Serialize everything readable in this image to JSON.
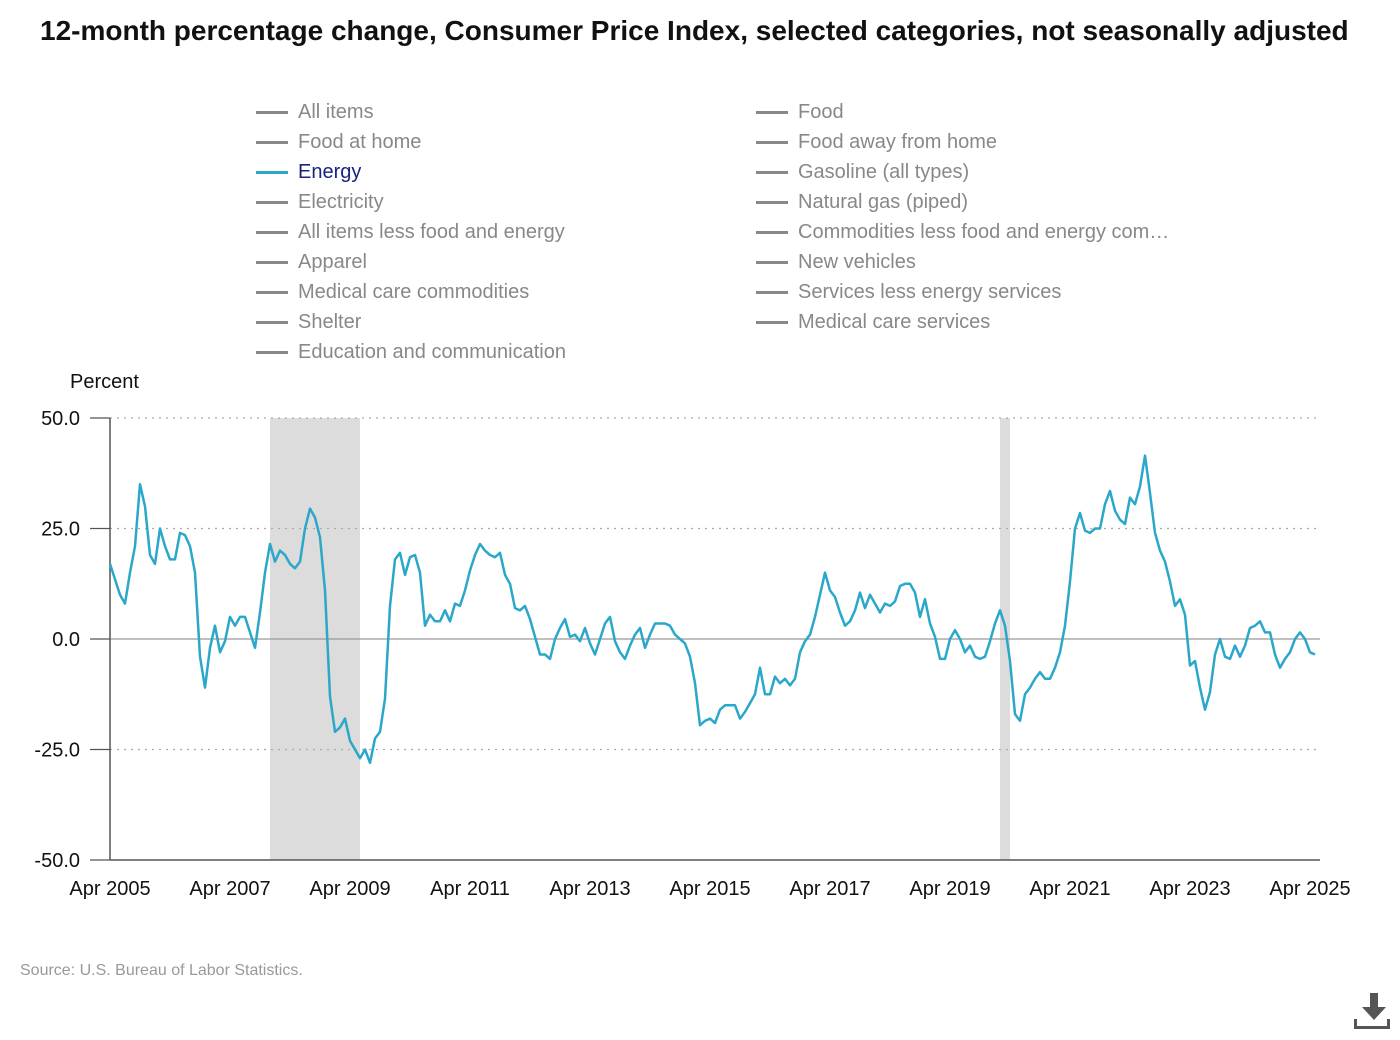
{
  "title": "12-month percentage change, Consumer Price Index, selected categories, not seasonally adjusted",
  "legend": [
    {
      "label": "All items",
      "active": false
    },
    {
      "label": "Food",
      "active": false
    },
    {
      "label": "Food at home",
      "active": false
    },
    {
      "label": "Food away from home",
      "active": false
    },
    {
      "label": "Energy",
      "active": true
    },
    {
      "label": "Gasoline (all types)",
      "active": false
    },
    {
      "label": "Electricity",
      "active": false
    },
    {
      "label": "Natural gas (piped)",
      "active": false
    },
    {
      "label": "All items less food and energy",
      "active": false
    },
    {
      "label": "Commodities less food and energy com…",
      "active": false
    },
    {
      "label": "Apparel",
      "active": false
    },
    {
      "label": "New vehicles",
      "active": false
    },
    {
      "label": "Medical care commodities",
      "active": false
    },
    {
      "label": "Services less energy services",
      "active": false
    },
    {
      "label": "Shelter",
      "active": false
    },
    {
      "label": "Medical care services",
      "active": false
    },
    {
      "label": "Education and communication",
      "active": false
    }
  ],
  "source": "Source: U.S. Bureau of Labor Statistics.",
  "colors": {
    "energy_line": "#2aa7c9",
    "recession_band": "#dcdcdc",
    "active_legend_text": "#1a237e",
    "inactive_legend": "#888888"
  },
  "icons": {
    "download": "download-icon"
  },
  "chart_data": {
    "type": "line",
    "ylabel": "Percent",
    "ylim": [
      -50,
      50
    ],
    "yticks": [
      50,
      25,
      0,
      -25,
      -50
    ],
    "ytick_labels": [
      "50.0",
      "25.0",
      "0.0",
      "-25.0",
      "-50.0"
    ],
    "xlim": [
      "2005-04",
      "2025-06"
    ],
    "xtick_labels": [
      "Apr 2005",
      "Apr 2007",
      "Apr 2009",
      "Apr 2011",
      "Apr 2013",
      "Apr 2015",
      "Apr 2017",
      "Apr 2019",
      "Apr 2021",
      "Apr 2023",
      "Apr 2025"
    ],
    "xtick_dates": [
      "2005-04",
      "2007-04",
      "2009-04",
      "2011-04",
      "2013-04",
      "2015-04",
      "2017-04",
      "2019-04",
      "2021-04",
      "2023-04",
      "2025-04"
    ],
    "grid": "horizontal dotted",
    "recessions": [
      {
        "start": "2007-12",
        "end": "2009-06"
      },
      {
        "start": "2020-02",
        "end": "2020-04"
      }
    ],
    "series": [
      {
        "name": "Energy",
        "points": [
          [
            "2005-04",
            17
          ],
          [
            "2005-06",
            10
          ],
          [
            "2005-07",
            8
          ],
          [
            "2005-08",
            15
          ],
          [
            "2005-09",
            21
          ],
          [
            "2005-10",
            35
          ],
          [
            "2005-11",
            30
          ],
          [
            "2005-12",
            19
          ],
          [
            "2006-01",
            17
          ],
          [
            "2006-02",
            25
          ],
          [
            "2006-03",
            21
          ],
          [
            "2006-04",
            18
          ],
          [
            "2006-05",
            18
          ],
          [
            "2006-06",
            24
          ],
          [
            "2006-07",
            23.5
          ],
          [
            "2006-08",
            21
          ],
          [
            "2006-09",
            15
          ],
          [
            "2006-10",
            -4
          ],
          [
            "2006-11",
            -11
          ],
          [
            "2006-12",
            -2
          ],
          [
            "2007-01",
            3
          ],
          [
            "2007-02",
            -3
          ],
          [
            "2007-03",
            -0.5
          ],
          [
            "2007-04",
            5
          ],
          [
            "2007-05",
            3
          ],
          [
            "2007-06",
            5
          ],
          [
            "2007-07",
            5
          ],
          [
            "2007-08",
            1.5
          ],
          [
            "2007-09",
            -2
          ],
          [
            "2007-10",
            6
          ],
          [
            "2007-11",
            15
          ],
          [
            "2007-12",
            21.5
          ],
          [
            "2008-01",
            17.5
          ],
          [
            "2008-02",
            20
          ],
          [
            "2008-03",
            19
          ],
          [
            "2008-04",
            17
          ],
          [
            "2008-05",
            16
          ],
          [
            "2008-06",
            17.5
          ],
          [
            "2008-07",
            25
          ],
          [
            "2008-08",
            29.5
          ],
          [
            "2008-09",
            27.5
          ],
          [
            "2008-10",
            23
          ],
          [
            "2008-11",
            11
          ],
          [
            "2008-12",
            -13
          ],
          [
            "2009-01",
            -21
          ],
          [
            "2009-02",
            -20
          ],
          [
            "2009-03",
            -18
          ],
          [
            "2009-04",
            -23
          ],
          [
            "2009-05",
            -25
          ],
          [
            "2009-06",
            -27
          ],
          [
            "2009-07",
            -25
          ],
          [
            "2009-08",
            -28
          ],
          [
            "2009-09",
            -22.5
          ],
          [
            "2009-10",
            -21
          ],
          [
            "2009-11",
            -13.5
          ],
          [
            "2009-12",
            7.5
          ],
          [
            "2010-01",
            18
          ],
          [
            "2010-02",
            19.5
          ],
          [
            "2010-03",
            14.5
          ],
          [
            "2010-04",
            18.5
          ],
          [
            "2010-05",
            19
          ],
          [
            "2010-06",
            15
          ],
          [
            "2010-07",
            3
          ],
          [
            "2010-08",
            5.5
          ],
          [
            "2010-09",
            4
          ],
          [
            "2010-10",
            4
          ],
          [
            "2010-11",
            6.5
          ],
          [
            "2010-12",
            4
          ],
          [
            "2011-01",
            8
          ],
          [
            "2011-02",
            7.5
          ],
          [
            "2011-03",
            11
          ],
          [
            "2011-04",
            15.5
          ],
          [
            "2011-05",
            19
          ],
          [
            "2011-06",
            21.5
          ],
          [
            "2011-07",
            20
          ],
          [
            "2011-08",
            19
          ],
          [
            "2011-09",
            18.5
          ],
          [
            "2011-10",
            19.5
          ],
          [
            "2011-11",
            14.5
          ],
          [
            "2011-12",
            12.5
          ],
          [
            "2012-01",
            7
          ],
          [
            "2012-02",
            6.5
          ],
          [
            "2012-03",
            7.5
          ],
          [
            "2012-04",
            4.5
          ],
          [
            "2012-05",
            0.5
          ],
          [
            "2012-06",
            -3.5
          ],
          [
            "2012-07",
            -3.5
          ],
          [
            "2012-08",
            -4.5
          ],
          [
            "2012-09",
            0
          ],
          [
            "2012-10",
            2.5
          ],
          [
            "2012-11",
            4.5
          ],
          [
            "2012-12",
            0.5
          ],
          [
            "2013-01",
            1
          ],
          [
            "2013-02",
            -0.5
          ],
          [
            "2013-03",
            2.5
          ],
          [
            "2013-04",
            -1
          ],
          [
            "2013-05",
            -3.5
          ],
          [
            "2013-06",
            0
          ],
          [
            "2013-07",
            3.5
          ],
          [
            "2013-08",
            5
          ],
          [
            "2013-09",
            -0.5
          ],
          [
            "2013-10",
            -3
          ],
          [
            "2013-11",
            -4.5
          ],
          [
            "2013-12",
            -1.5
          ],
          [
            "2014-01",
            1
          ],
          [
            "2014-02",
            2.5
          ],
          [
            "2014-03",
            -2
          ],
          [
            "2014-04",
            1
          ],
          [
            "2014-05",
            3.5
          ],
          [
            "2014-06",
            3.5
          ],
          [
            "2014-07",
            3.5
          ],
          [
            "2014-08",
            3
          ],
          [
            "2014-09",
            1
          ],
          [
            "2014-10",
            0
          ],
          [
            "2014-11",
            -1
          ],
          [
            "2014-12",
            -4
          ],
          [
            "2015-01",
            -10
          ],
          [
            "2015-02",
            -19.5
          ],
          [
            "2015-03",
            -18.5
          ],
          [
            "2015-04",
            -18
          ],
          [
            "2015-05",
            -19
          ],
          [
            "2015-06",
            -16
          ],
          [
            "2015-07",
            -15
          ],
          [
            "2015-08",
            -15
          ],
          [
            "2015-09",
            -15
          ],
          [
            "2015-10",
            -18
          ],
          [
            "2015-11",
            -16.5
          ],
          [
            "2015-12",
            -14.5
          ],
          [
            "2016-01",
            -12.5
          ],
          [
            "2016-02",
            -6.5
          ],
          [
            "2016-03",
            -12.5
          ],
          [
            "2016-04",
            -12.5
          ],
          [
            "2016-05",
            -8.5
          ],
          [
            "2016-06",
            -10
          ],
          [
            "2016-07",
            -9
          ],
          [
            "2016-08",
            -10.5
          ],
          [
            "2016-09",
            -9
          ],
          [
            "2016-10",
            -3
          ],
          [
            "2016-11",
            -0.5
          ],
          [
            "2016-12",
            1
          ],
          [
            "2017-01",
            5
          ],
          [
            "2017-02",
            10
          ],
          [
            "2017-03",
            15
          ],
          [
            "2017-04",
            11
          ],
          [
            "2017-05",
            9.5
          ],
          [
            "2017-06",
            6
          ],
          [
            "2017-07",
            3
          ],
          [
            "2017-08",
            4
          ],
          [
            "2017-09",
            6.5
          ],
          [
            "2017-10",
            10.5
          ],
          [
            "2017-11",
            7
          ],
          [
            "2017-12",
            10
          ],
          [
            "2018-01",
            8
          ],
          [
            "2018-02",
            6
          ],
          [
            "2018-03",
            8
          ],
          [
            "2018-04",
            7.5
          ],
          [
            "2018-05",
            8.5
          ],
          [
            "2018-06",
            12
          ],
          [
            "2018-07",
            12.5
          ],
          [
            "2018-08",
            12.5
          ],
          [
            "2018-09",
            10.5
          ],
          [
            "2018-10",
            5
          ],
          [
            "2018-11",
            9
          ],
          [
            "2018-12",
            3.5
          ],
          [
            "2019-01",
            0.5
          ],
          [
            "2019-02",
            -4.5
          ],
          [
            "2019-03",
            -4.5
          ],
          [
            "2019-04",
            0
          ],
          [
            "2019-05",
            2
          ],
          [
            "2019-06",
            0
          ],
          [
            "2019-07",
            -3
          ],
          [
            "2019-08",
            -1.5
          ],
          [
            "2019-09",
            -4
          ],
          [
            "2019-10",
            -4.5
          ],
          [
            "2019-11",
            -4
          ],
          [
            "2019-12",
            -0.5
          ],
          [
            "2020-01",
            3.5
          ],
          [
            "2020-02",
            6.5
          ],
          [
            "2020-03",
            3
          ],
          [
            "2020-04",
            -5
          ],
          [
            "2020-05",
            -17
          ],
          [
            "2020-06",
            -18.5
          ],
          [
            "2020-07",
            -12.5
          ],
          [
            "2020-08",
            -11
          ],
          [
            "2020-09",
            -9
          ],
          [
            "2020-10",
            -7.5
          ],
          [
            "2020-11",
            -9
          ],
          [
            "2020-12",
            -9
          ],
          [
            "2021-01",
            -6.5
          ],
          [
            "2021-02",
            -3
          ],
          [
            "2021-03",
            3
          ],
          [
            "2021-04",
            13
          ],
          [
            "2021-05",
            25
          ],
          [
            "2021-06",
            28.5
          ],
          [
            "2021-07",
            24.5
          ],
          [
            "2021-08",
            24
          ],
          [
            "2021-09",
            25
          ],
          [
            "2021-10",
            25
          ],
          [
            "2021-11",
            30.5
          ],
          [
            "2021-12",
            33.5
          ],
          [
            "2022-01",
            29
          ],
          [
            "2022-02",
            27
          ],
          [
            "2022-03",
            26
          ],
          [
            "2022-04",
            32
          ],
          [
            "2022-05",
            30.5
          ],
          [
            "2022-06",
            34.5
          ],
          [
            "2022-07",
            41.5
          ],
          [
            "2022-08",
            33
          ],
          [
            "2022-09",
            24
          ],
          [
            "2022-10",
            20
          ],
          [
            "2022-11",
            17.5
          ],
          [
            "2022-12",
            13
          ],
          [
            "2023-01",
            7.5
          ],
          [
            "2023-02",
            9
          ],
          [
            "2023-03",
            5.5
          ],
          [
            "2023-04",
            -6
          ],
          [
            "2023-05",
            -5
          ],
          [
            "2023-06",
            -11
          ],
          [
            "2023-07",
            -16
          ],
          [
            "2023-08",
            -12
          ],
          [
            "2023-09",
            -3.5
          ],
          [
            "2023-10",
            0
          ],
          [
            "2023-11",
            -4
          ],
          [
            "2023-12",
            -4.5
          ],
          [
            "2024-01",
            -1.5
          ],
          [
            "2024-02",
            -4
          ],
          [
            "2024-03",
            -1.5
          ],
          [
            "2024-04",
            2.5
          ],
          [
            "2024-05",
            3
          ],
          [
            "2024-06",
            4
          ],
          [
            "2024-07",
            1.5
          ],
          [
            "2024-08",
            1.5
          ],
          [
            "2024-09",
            -3.5
          ],
          [
            "2024-10",
            -6.5
          ],
          [
            "2024-11",
            -4.5
          ],
          [
            "2024-12",
            -3
          ],
          [
            "2025-01",
            0
          ],
          [
            "2025-02",
            1.5
          ],
          [
            "2025-03",
            0
          ],
          [
            "2025-04",
            -3
          ],
          [
            "2025-05",
            -3.5
          ]
        ]
      }
    ]
  }
}
